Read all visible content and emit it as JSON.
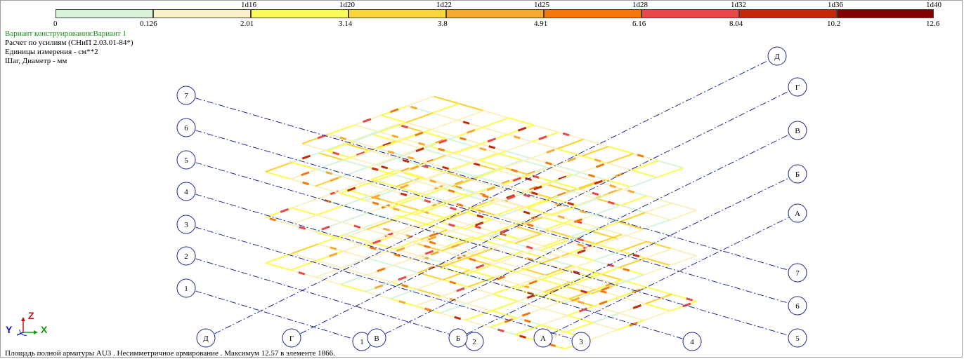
{
  "legend": {
    "top_labels": [
      "1d16",
      "1d20",
      "1d22",
      "1d25",
      "1d28",
      "1d32",
      "1d36",
      "1d40"
    ],
    "bottom_labels": [
      "0",
      "0.126",
      "2.01",
      "3.14",
      "3.8",
      "4.91",
      "6.16",
      "8.04",
      "10.2",
      "12.6"
    ],
    "colors": [
      "#d8f5dc",
      "#fbf1c6",
      "#fbfb5a",
      "#fbd43a",
      "#f8a932",
      "#f5780a",
      "#e84848",
      "#c42a0a",
      "#800000"
    ]
  },
  "info": {
    "variant": "Вариант конструирования:Вариант 1",
    "calc": "Расчет по усилиям (СНиП 2.03.01-84*)",
    "units": "Единицы измерения - см**2",
    "step": "Шаг, Диаметр - мм"
  },
  "axes": {
    "letter_axes": [
      "А",
      "Б",
      "В",
      "Г",
      "Д"
    ],
    "number_axes": [
      "1",
      "2",
      "3",
      "4",
      "5",
      "6",
      "7"
    ]
  },
  "triad": {
    "y": "Y",
    "z": "Z",
    "x": "X"
  },
  "footer": "Площадь полной арматуры AU3 . Несимметричное армирование . Максимум 12.57 в элементе 1866."
}
